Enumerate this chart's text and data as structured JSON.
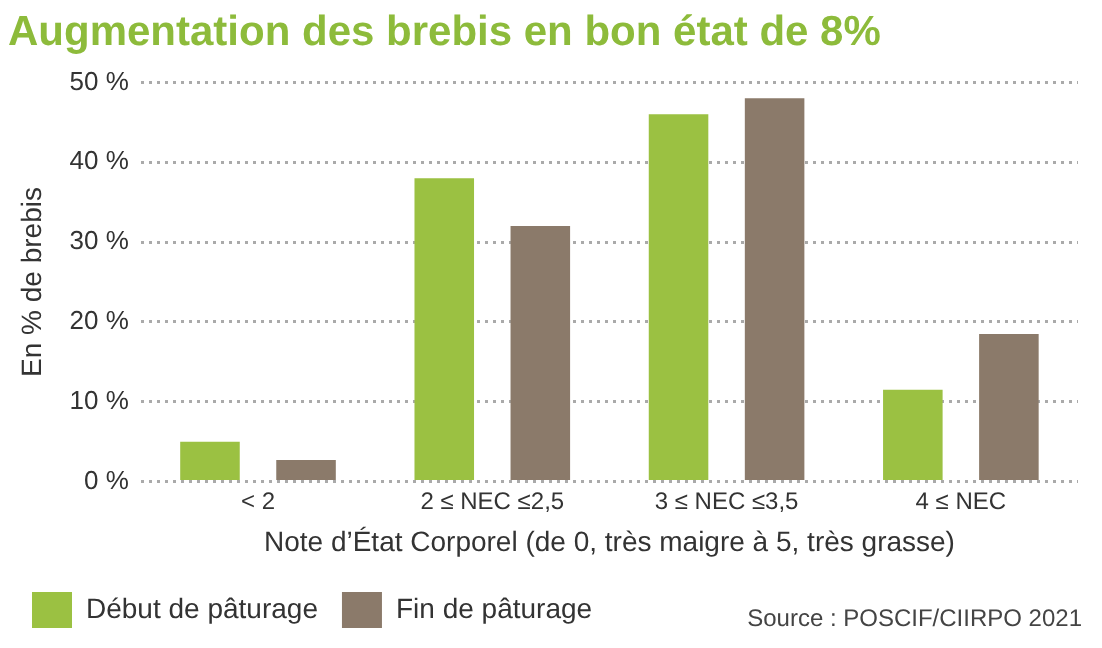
{
  "chart_data": {
    "type": "bar",
    "title": "Augmentation des brebis en bon état de 8%",
    "xlabel": "Note d’État Corporel (de 0, très maigre à 5, très grasse)",
    "ylabel": "En % de brebis",
    "categories": [
      "< 2",
      "2 ≤ NEC ≤2,5",
      "3 ≤ NEC ≤3,5",
      "4 ≤ NEC"
    ],
    "series": [
      {
        "name": "Début de pâturage",
        "color": "#9bc142",
        "values": [
          5,
          38,
          46,
          11.5
        ]
      },
      {
        "name": "Fin de pâturage",
        "color": "#8b7a6a",
        "values": [
          2.7,
          32,
          48,
          18.5
        ]
      }
    ],
    "ylim": [
      0,
      50
    ],
    "yticks": [
      {
        "value": 0,
        "label": "0 %"
      },
      {
        "value": 10,
        "label": "10 %"
      },
      {
        "value": 20,
        "label": "20 %"
      },
      {
        "value": 30,
        "label": "30 %"
      },
      {
        "value": 40,
        "label": "40 %"
      },
      {
        "value": 50,
        "label": "50 %"
      }
    ],
    "grid": "y",
    "legend": "bottom left",
    "annotations": [
      "Source : POSCIF/CIIRPO 2021"
    ]
  }
}
